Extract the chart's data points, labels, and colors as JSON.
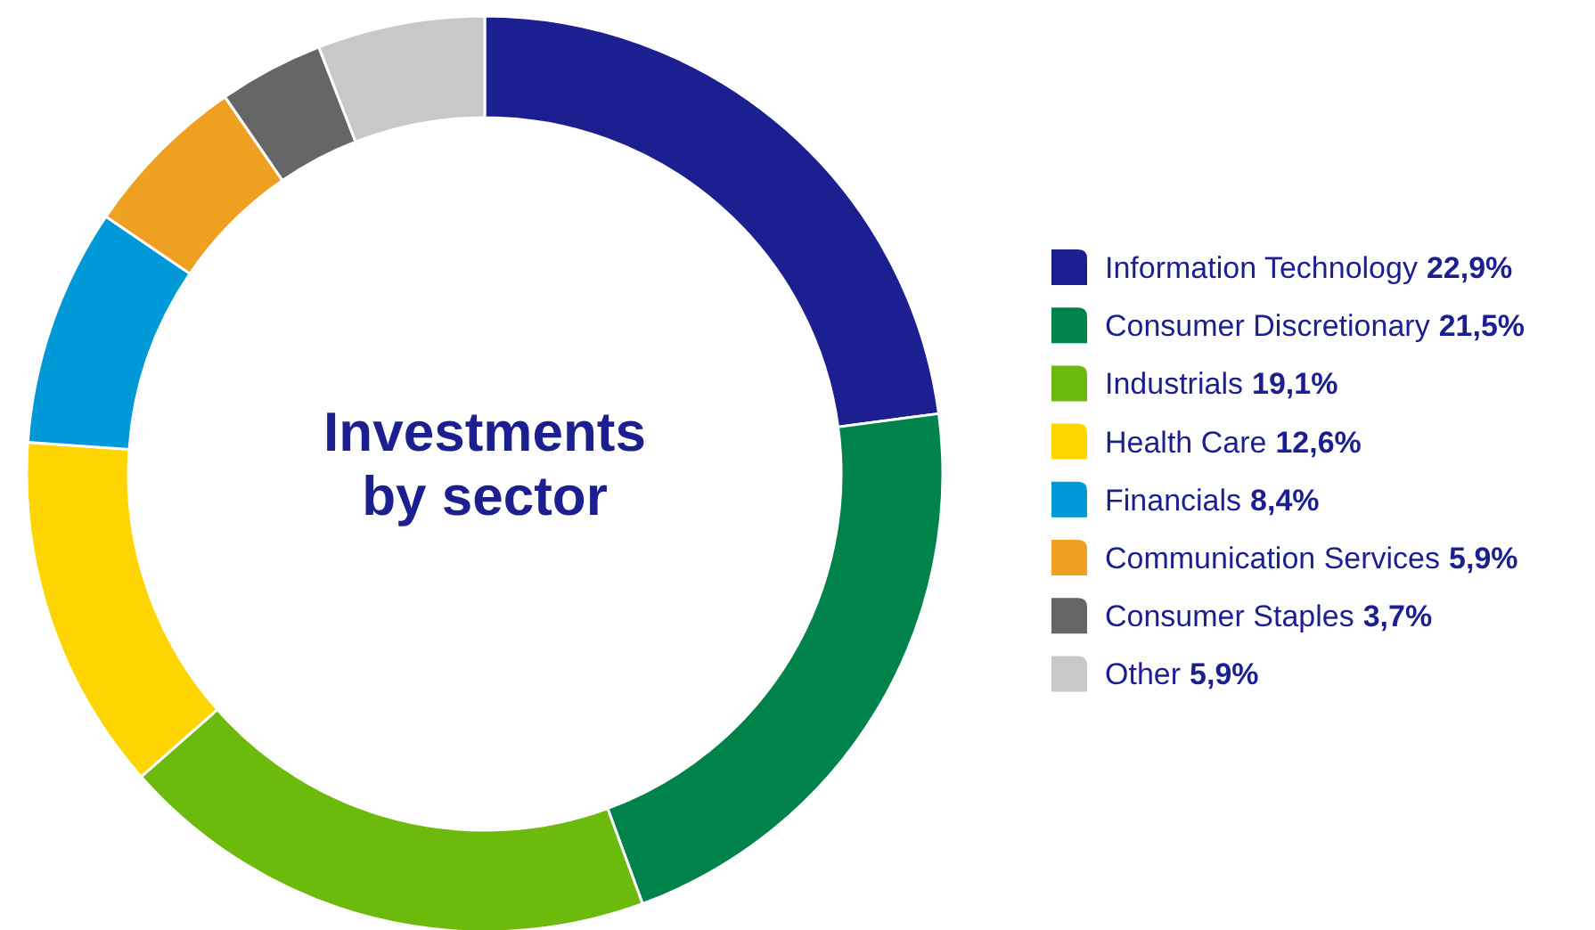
{
  "chart_data": {
    "type": "donut",
    "title": "Investments\nby sector",
    "categories": [
      "Information Technology",
      "Consumer Discretionary",
      "Industrials",
      "Health Care",
      "Financials",
      "Communication Services",
      "Consumer Staples",
      "Other"
    ],
    "values": [
      22.9,
      21.5,
      19.1,
      12.6,
      8.4,
      5.9,
      3.7,
      5.9
    ],
    "value_labels": [
      "22,9%",
      "21,5%",
      "19,1%",
      "12,6%",
      "8,4%",
      "5,9%",
      "3,7%",
      "5,9%"
    ],
    "colors": [
      "#1b1f8f",
      "#00834a",
      "#6cbb0c",
      "#ffd500",
      "#0099d8",
      "#efa020",
      "#666666",
      "#c8c8c8"
    ],
    "legend": "right"
  }
}
